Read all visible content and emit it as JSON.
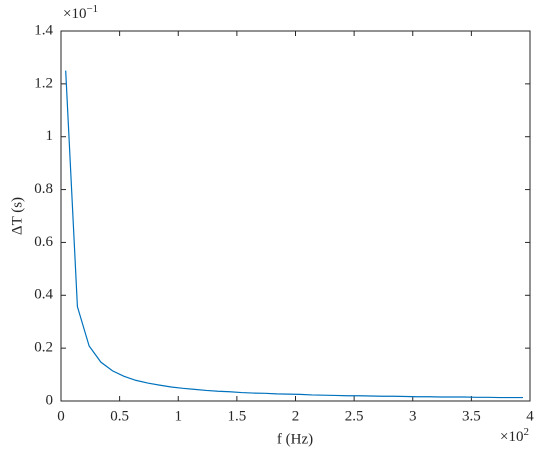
{
  "chart_data": {
    "type": "line",
    "xlabel": "f (Hz)",
    "ylabel": "ΔT (s)",
    "x_exponent": {
      "base": "×10",
      "power": "2"
    },
    "y_exponent": {
      "base": "×10",
      "power": "−1"
    },
    "xlim": [
      0,
      4
    ],
    "xticks": [
      0,
      0.5,
      1,
      1.5,
      2,
      2.5,
      3,
      3.5,
      4
    ],
    "ylim": [
      0,
      1.4
    ],
    "yticks": [
      0,
      0.2,
      0.4,
      0.6,
      0.8,
      1,
      1.2,
      1.4
    ],
    "grid": false,
    "x": [
      0.04,
      0.14,
      0.24,
      0.34,
      0.44,
      0.54,
      0.64,
      0.74,
      0.84,
      0.94,
      1.04,
      1.14,
      1.24,
      1.34,
      1.44,
      1.54,
      1.64,
      1.74,
      1.84,
      1.94,
      2.04,
      2.14,
      2.24,
      2.34,
      2.44,
      2.54,
      2.64,
      2.74,
      2.84,
      2.94,
      3.04,
      3.14,
      3.24,
      3.34,
      3.44,
      3.54,
      3.64,
      3.74,
      3.84,
      3.94
    ],
    "series": [
      {
        "color": "#0072bd",
        "values": [
          1.25,
          0.357,
          0.208,
          0.147,
          0.114,
          0.093,
          0.078,
          0.068,
          0.06,
          0.053,
          0.048,
          0.044,
          0.04,
          0.037,
          0.035,
          0.032,
          0.03,
          0.029,
          0.027,
          0.026,
          0.025,
          0.023,
          0.022,
          0.021,
          0.02,
          0.02,
          0.019,
          0.018,
          0.018,
          0.017,
          0.016,
          0.016,
          0.015,
          0.015,
          0.015,
          0.014,
          0.014,
          0.013,
          0.013,
          0.013
        ]
      }
    ]
  }
}
